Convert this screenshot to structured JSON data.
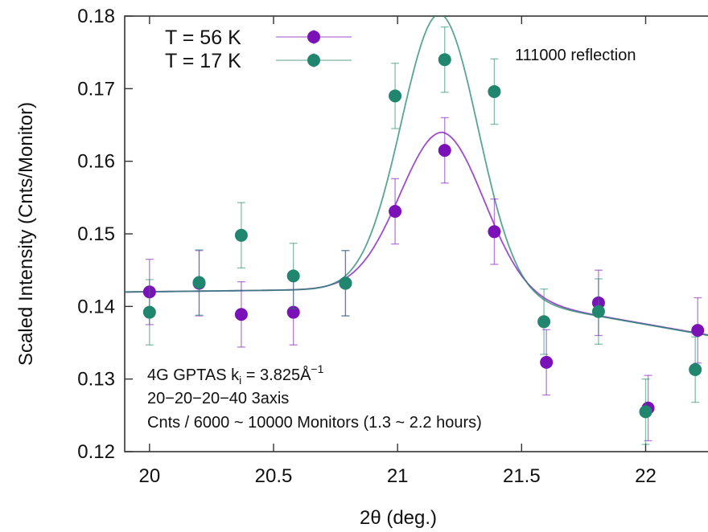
{
  "chart_data": {
    "type": "scatter",
    "title": "",
    "xlabel": "2θ (deg.)",
    "ylabel": "Scaled Intensity (Cnts/Monitor)",
    "xlim": [
      19.9,
      22.3
    ],
    "ylim": [
      0.12,
      0.18
    ],
    "x_ticks": [
      20,
      20.5,
      21,
      21.5,
      22
    ],
    "x_tick_labels": [
      "20",
      "20.5",
      "21",
      "21.5",
      "22"
    ],
    "y_ticks": [
      0.12,
      0.13,
      0.14,
      0.15,
      0.16,
      0.17,
      0.18
    ],
    "y_tick_labels": [
      "0.12",
      "0.13",
      "0.14",
      "0.15",
      "0.16",
      "0.17",
      "0.18"
    ],
    "grid": false,
    "legend_position": "top-left",
    "series": [
      {
        "name": "T = 56 K",
        "color": "#7b12b8",
        "points": [
          {
            "x": 20.0,
            "y": 0.142,
            "err": 0.0045
          },
          {
            "x": 20.2,
            "y": 0.1432,
            "err": 0.0045
          },
          {
            "x": 20.37,
            "y": 0.1389,
            "err": 0.0045
          },
          {
            "x": 20.58,
            "y": 0.1392,
            "err": 0.0045
          },
          {
            "x": 20.79,
            "y": 0.1432,
            "err": 0.0045
          },
          {
            "x": 20.99,
            "y": 0.1531,
            "err": 0.0045
          },
          {
            "x": 21.19,
            "y": 0.1615,
            "err": 0.0045
          },
          {
            "x": 21.39,
            "y": 0.1503,
            "err": 0.0045
          },
          {
            "x": 21.6,
            "y": 0.1323,
            "err": 0.0045
          },
          {
            "x": 21.81,
            "y": 0.1405,
            "err": 0.0045
          },
          {
            "x": 22.01,
            "y": 0.126,
            "err": 0.0045
          },
          {
            "x": 22.21,
            "y": 0.1367,
            "err": 0.0045
          }
        ],
        "fit": {
          "baseline_a": 0.1425,
          "baseline_b": 0.002,
          "sigma_pos": 0.01386,
          "peak_center": 21.18,
          "peak_amplitude": 0.0215,
          "peak_width": 0.17
        }
      },
      {
        "name": "T = 17 K",
        "color": "#21866e",
        "points": [
          {
            "x": 20.0,
            "y": 0.1392,
            "err": 0.0045
          },
          {
            "x": 20.2,
            "y": 0.1433,
            "err": 0.0045
          },
          {
            "x": 20.37,
            "y": 0.1498,
            "err": 0.0045
          },
          {
            "x": 20.58,
            "y": 0.1442,
            "err": 0.0045
          },
          {
            "x": 20.79,
            "y": 0.1432,
            "err": 0.0045
          },
          {
            "x": 20.99,
            "y": 0.169,
            "err": 0.0045
          },
          {
            "x": 21.19,
            "y": 0.174,
            "err": 0.0045
          },
          {
            "x": 21.39,
            "y": 0.1696,
            "err": 0.0045
          },
          {
            "x": 21.59,
            "y": 0.1379,
            "err": 0.0045
          },
          {
            "x": 21.81,
            "y": 0.1393,
            "err": 0.0045
          },
          {
            "x": 22.0,
            "y": 0.1255,
            "err": 0.0045
          },
          {
            "x": 22.2,
            "y": 0.1313,
            "err": 0.0045
          }
        ],
        "fit": {
          "baseline_a": 0.1425,
          "baseline_b": 0.002,
          "sigma_pos": 0.01386,
          "peak_center": 21.17,
          "peak_amplitude": 0.0378,
          "peak_width": 0.155
        }
      }
    ],
    "annotations": {
      "reflection": "111000 reflection",
      "instrument_prefix": "4G GPTAS k",
      "instrument_sub": "i",
      "instrument_value": " = 3.825Å",
      "instrument_sup": "−1",
      "collimation": "20−20−20−40 3axis",
      "counting": "Cnts / 6000 ~ 10000 Monitors (1.3 ~ 2.2 hours)"
    }
  }
}
